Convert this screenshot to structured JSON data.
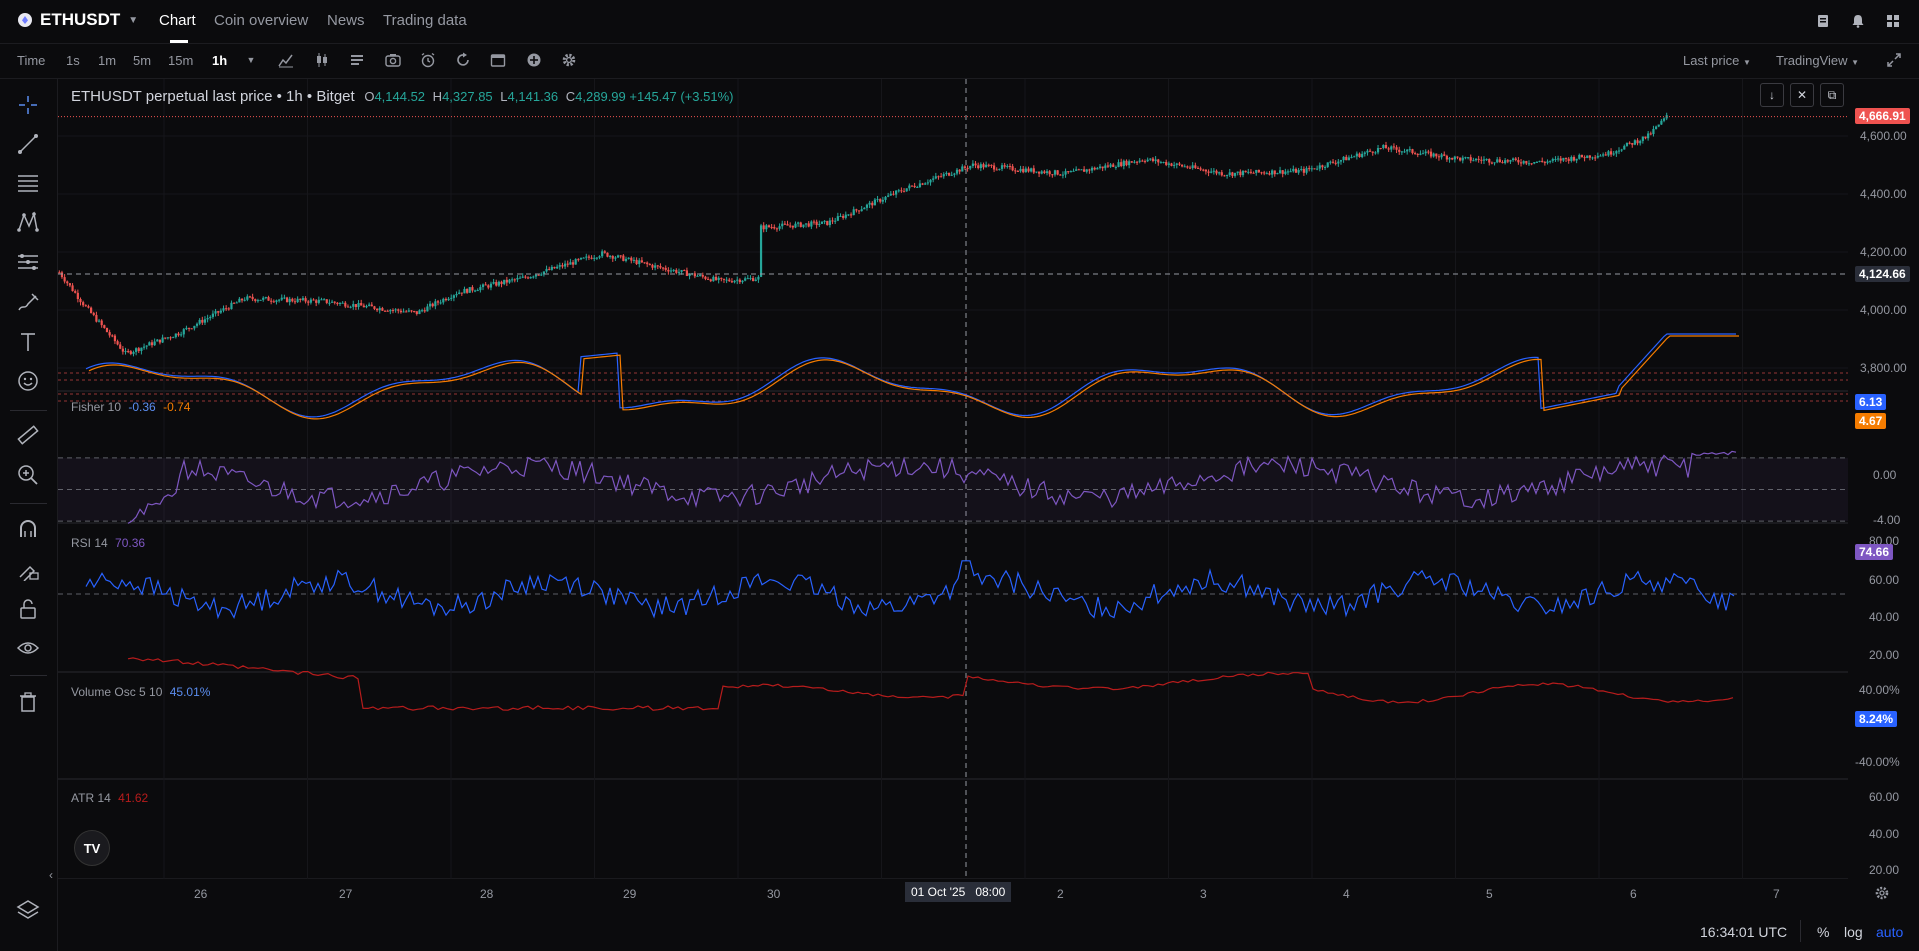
{
  "header": {
    "symbol": "ETHUSDT",
    "tabs": [
      {
        "label": "Chart"
      },
      {
        "label": "Coin overview"
      },
      {
        "label": "News"
      },
      {
        "label": "Trading data"
      }
    ]
  },
  "toolbar": {
    "timeframes": [
      "Time",
      "1s",
      "1m",
      "5m",
      "15m",
      "1h"
    ],
    "last_price_label": "Last price",
    "source_label": "TradingView"
  },
  "legend": {
    "title": "ETHUSDT perpetual last price • 1h • Bitget",
    "o_label": "O",
    "o": "4,144.52",
    "h_label": "H",
    "h": "4,327.85",
    "l_label": "L",
    "l": "4,141.36",
    "c_label": "C",
    "c": "4,289.99",
    "change": "+145.47 (+3.51%)"
  },
  "price_axis": {
    "ticks": [
      "4,600.00",
      "4,400.00",
      "4,200.00",
      "4,000.00",
      "3,800.00"
    ],
    "last_price": "4,666.91",
    "crosshair_price": "4,124.66"
  },
  "fisher": {
    "label": "Fisher 10",
    "v1": "-0.36",
    "v2": "-0.74",
    "box1": "6.13",
    "box2": "4.67",
    "ticks": [
      "0.00",
      "-4.00"
    ]
  },
  "rsi": {
    "label": "RSI 14",
    "value": "70.36",
    "box": "74.66",
    "ticks": [
      "80.00",
      "60.00",
      "40.00",
      "20.00"
    ]
  },
  "volosc": {
    "label": "Volume Osc 5 10",
    "value": "45.01%",
    "box": "8.24%",
    "ticks": [
      "40.00%",
      "-40.00%"
    ]
  },
  "atr": {
    "label": "ATR 14",
    "value": "41.62",
    "ticks": [
      "60.00",
      "40.00",
      "20.00"
    ]
  },
  "time_axis": {
    "labels": [
      "26",
      "27",
      "28",
      "29",
      "30",
      "2",
      "3",
      "4",
      "5",
      "6",
      "7"
    ],
    "crosshair_time": "01 Oct '25   08:00"
  },
  "status": {
    "clock": "16:34:01 UTC",
    "percent": "%",
    "log": "log",
    "auto": "auto"
  },
  "colors": {
    "up": "#26a69a",
    "down": "#ef5350",
    "fisher1": "#2962ff",
    "fisher2": "#f57c00",
    "rsi": "#7e57c2",
    "volosc": "#2962ff",
    "atr": "#b71c1c"
  },
  "chart_data": {
    "type": "candlestick",
    "interval": "1h",
    "price_range": [
      3720,
      4720
    ],
    "last_price": 4666.91
  }
}
